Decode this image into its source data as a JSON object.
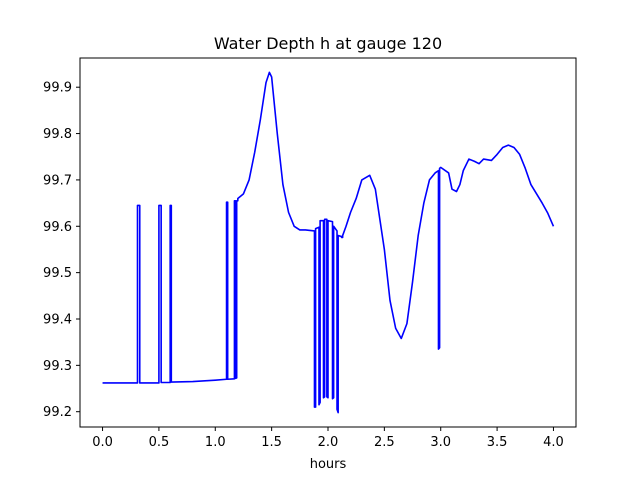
{
  "chart_data": {
    "type": "line",
    "title": "Water Depth h at gauge 120",
    "xlabel": "hours",
    "ylabel": "",
    "xlim": [
      -0.2,
      4.2
    ],
    "ylim": [
      99.167,
      99.963
    ],
    "xticks": [
      0.0,
      0.5,
      1.0,
      1.5,
      2.0,
      2.5,
      3.0,
      3.5,
      4.0
    ],
    "xtick_labels": [
      "0.0",
      "0.5",
      "1.0",
      "1.5",
      "2.0",
      "2.5",
      "3.0",
      "3.5",
      "4.0"
    ],
    "yticks": [
      99.2,
      99.3,
      99.4,
      99.5,
      99.6,
      99.7,
      99.8,
      99.9
    ],
    "ytick_labels": [
      "99.2",
      "99.3",
      "99.4",
      "99.5",
      "99.6",
      "99.7",
      "99.8",
      "99.9"
    ],
    "grid": false,
    "series": [
      {
        "color": "#0000ff",
        "x": [
          0.0,
          0.31,
          0.31,
          0.33,
          0.33,
          0.5,
          0.5,
          0.52,
          0.52,
          0.6,
          0.6,
          0.61,
          0.61,
          0.8,
          1.0,
          1.1,
          1.1,
          1.11,
          1.11,
          1.17,
          1.17,
          1.18,
          1.18,
          1.19,
          1.19,
          1.2,
          1.2,
          1.25,
          1.3,
          1.35,
          1.4,
          1.45,
          1.48,
          1.5,
          1.55,
          1.6,
          1.65,
          1.7,
          1.75,
          1.8,
          1.88,
          1.88,
          1.89,
          1.89,
          1.92,
          1.92,
          1.93,
          1.93,
          1.96,
          1.96,
          1.97,
          1.97,
          1.99,
          1.99,
          2.0,
          2.0,
          2.04,
          2.04,
          2.05,
          2.05,
          2.08,
          2.08,
          2.09,
          2.09,
          2.12,
          2.12,
          2.13,
          2.13,
          2.16,
          2.2,
          2.25,
          2.3,
          2.37,
          2.42,
          2.5,
          2.55,
          2.6,
          2.65,
          2.7,
          2.75,
          2.8,
          2.85,
          2.9,
          2.95,
          2.98,
          2.98,
          2.99,
          2.99,
          3.0,
          3.0,
          3.07,
          3.1,
          3.14,
          3.17,
          3.2,
          3.25,
          3.3,
          3.34,
          3.38,
          3.45,
          3.5,
          3.55,
          3.6,
          3.65,
          3.7,
          3.75,
          3.8,
          3.85,
          3.9,
          3.95,
          4.0
        ],
        "y": [
          99.262,
          99.262,
          99.645,
          99.645,
          99.262,
          99.262,
          99.645,
          99.645,
          99.263,
          99.263,
          99.645,
          99.645,
          99.264,
          99.265,
          99.268,
          99.27,
          99.652,
          99.652,
          99.27,
          99.271,
          99.655,
          99.655,
          99.272,
          99.273,
          99.655,
          99.655,
          99.66,
          99.67,
          99.7,
          99.76,
          99.83,
          99.91,
          99.932,
          99.922,
          99.8,
          99.69,
          99.63,
          99.6,
          99.592,
          99.592,
          99.59,
          99.21,
          99.21,
          99.595,
          99.598,
          99.215,
          99.22,
          99.612,
          99.612,
          99.23,
          99.232,
          99.615,
          99.615,
          99.232,
          99.23,
          99.612,
          99.61,
          99.228,
          99.23,
          99.6,
          99.59,
          99.205,
          99.198,
          99.58,
          99.578,
          99.576,
          99.576,
          99.58,
          99.6,
          99.63,
          99.66,
          99.7,
          99.71,
          99.68,
          99.55,
          99.44,
          99.38,
          99.358,
          99.39,
          99.48,
          99.58,
          99.65,
          99.7,
          99.715,
          99.72,
          99.335,
          99.338,
          99.725,
          99.727,
          99.727,
          99.715,
          99.68,
          99.675,
          99.69,
          99.72,
          99.745,
          99.74,
          99.735,
          99.745,
          99.742,
          99.755,
          99.77,
          99.775,
          99.77,
          99.755,
          99.725,
          99.69,
          99.67,
          99.65,
          99.628,
          99.6
        ]
      }
    ]
  }
}
